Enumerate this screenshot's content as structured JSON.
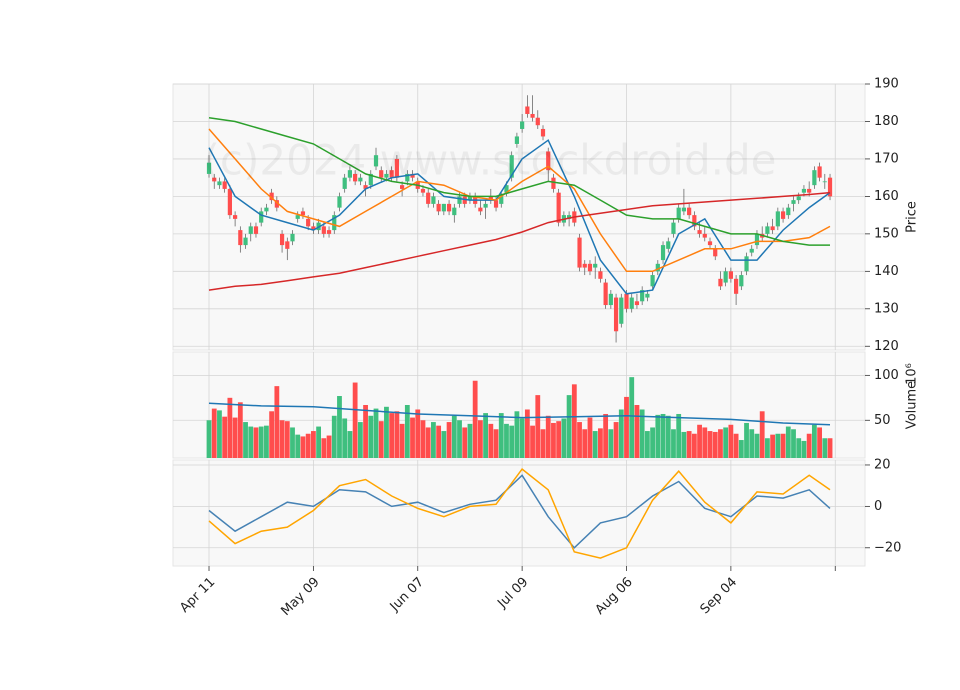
{
  "watermark": "(c)2024 www.stockdroid.de",
  "chart_data": [
    {
      "type": "candlestick",
      "ylabel": "Price",
      "xlim": [
        -6.9,
        125.7
      ],
      "ylim": [
        119,
        190
      ],
      "yticks": [
        120,
        130,
        140,
        150,
        160,
        170,
        180,
        190
      ],
      "grid": true,
      "up_color": "#3fbf7f",
      "down_color": "#ff4d4d",
      "ohlc": [
        [
          166,
          171,
          165,
          169
        ],
        [
          165,
          166,
          162,
          164
        ],
        [
          163,
          165,
          162,
          164
        ],
        [
          164,
          165,
          161,
          162
        ],
        [
          162,
          163,
          154,
          155
        ],
        [
          155,
          156,
          152,
          154
        ],
        [
          151,
          152,
          145,
          147
        ],
        [
          147,
          150,
          146,
          149
        ],
        [
          150,
          153,
          148,
          152
        ],
        [
          152,
          153,
          149,
          150
        ],
        [
          153,
          157,
          152,
          156
        ],
        [
          156,
          158,
          155,
          157
        ],
        [
          161,
          162,
          158,
          159
        ],
        [
          159,
          160,
          156,
          157
        ],
        [
          150,
          151,
          145,
          147
        ],
        [
          148,
          149,
          143,
          146
        ],
        [
          148,
          151,
          147,
          150
        ],
        [
          154,
          156,
          153,
          155
        ],
        [
          156,
          157,
          154,
          155
        ],
        [
          154,
          155,
          151,
          152
        ],
        [
          152,
          153,
          150,
          151
        ],
        [
          151,
          154,
          150,
          153
        ],
        [
          152,
          153,
          149,
          150
        ],
        [
          151,
          152,
          149,
          150
        ],
        [
          151,
          156,
          150,
          155
        ],
        [
          157,
          161,
          156,
          160
        ],
        [
          162,
          166,
          161,
          165
        ],
        [
          165,
          168,
          164,
          167
        ],
        [
          166,
          167,
          163,
          164
        ],
        [
          164,
          166,
          163,
          165
        ],
        [
          163,
          164,
          160,
          162
        ],
        [
          163,
          167,
          162,
          166
        ],
        [
          168,
          173,
          167,
          171
        ],
        [
          167,
          168,
          164,
          165
        ],
        [
          165,
          167,
          164,
          166
        ],
        [
          167,
          168,
          164,
          165
        ],
        [
          170,
          171,
          164,
          165
        ],
        [
          163,
          164,
          160,
          162
        ],
        [
          164,
          167,
          163,
          166
        ],
        [
          166,
          167,
          164,
          165
        ],
        [
          164,
          165,
          161,
          162
        ],
        [
          162,
          163,
          160,
          161
        ],
        [
          161,
          162,
          157,
          158
        ],
        [
          158,
          161,
          157,
          160
        ],
        [
          158,
          159,
          155,
          156
        ],
        [
          156,
          158,
          155,
          158
        ],
        [
          158,
          159,
          155,
          156
        ],
        [
          155,
          158,
          153,
          157
        ],
        [
          158,
          161,
          157,
          160
        ],
        [
          160,
          161,
          157,
          158
        ],
        [
          159,
          161,
          158,
          160
        ],
        [
          160,
          161,
          157,
          158
        ],
        [
          157,
          159,
          155,
          156
        ],
        [
          157,
          159,
          154,
          158
        ],
        [
          160,
          162,
          158,
          159
        ],
        [
          159,
          160,
          156,
          157
        ],
        [
          158,
          161,
          157,
          160
        ],
        [
          161,
          164,
          160,
          163
        ],
        [
          165,
          172,
          164,
          171
        ],
        [
          174,
          177,
          173,
          176
        ],
        [
          178,
          182,
          177,
          180
        ],
        [
          184,
          187,
          181,
          182
        ],
        [
          182,
          187,
          180,
          181
        ],
        [
          181,
          183,
          178,
          179
        ],
        [
          178,
          179,
          175,
          176
        ],
        [
          172,
          173,
          164,
          167
        ],
        [
          165,
          166,
          161,
          162
        ],
        [
          161,
          162,
          152,
          153
        ],
        [
          153,
          156,
          152,
          155
        ],
        [
          154,
          156,
          152,
          155
        ],
        [
          156,
          157,
          152,
          153
        ],
        [
          149,
          150,
          140,
          141
        ],
        [
          142,
          143,
          139,
          141
        ],
        [
          142,
          143,
          139,
          140
        ],
        [
          141,
          144,
          138,
          142
        ],
        [
          140,
          141,
          137,
          138
        ],
        [
          137,
          138,
          130,
          131
        ],
        [
          131,
          135,
          130,
          134
        ],
        [
          133,
          134,
          121,
          124
        ],
        [
          126,
          134,
          125,
          133
        ],
        [
          134,
          135,
          129,
          130
        ],
        [
          130,
          134,
          129,
          133
        ],
        [
          132,
          134,
          130,
          131
        ],
        [
          132,
          136,
          131,
          135
        ],
        [
          133,
          135,
          132,
          134
        ],
        [
          136,
          140,
          135,
          139
        ],
        [
          140,
          143,
          139,
          142
        ],
        [
          143,
          148,
          142,
          147
        ],
        [
          146,
          149,
          145,
          148
        ],
        [
          150,
          154,
          149,
          153
        ],
        [
          154,
          158,
          153,
          157
        ],
        [
          156,
          162,
          155,
          157
        ],
        [
          157,
          158,
          154,
          155
        ],
        [
          155,
          156,
          151,
          152
        ],
        [
          151,
          153,
          149,
          150
        ],
        [
          150,
          152,
          148,
          149
        ],
        [
          148,
          149,
          146,
          147
        ],
        [
          146,
          147,
          143,
          144
        ],
        [
          138,
          140,
          135,
          136
        ],
        [
          137,
          141,
          136,
          140
        ],
        [
          140,
          141,
          137,
          138
        ],
        [
          138,
          139,
          131,
          134
        ],
        [
          136,
          140,
          135,
          139
        ],
        [
          140,
          145,
          139,
          144
        ],
        [
          145,
          147,
          144,
          146
        ],
        [
          147,
          151,
          146,
          150
        ],
        [
          150,
          152,
          148,
          149
        ],
        [
          150,
          153,
          149,
          152
        ],
        [
          152,
          154,
          150,
          151
        ],
        [
          152,
          157,
          151,
          156
        ],
        [
          156,
          157,
          153,
          154
        ],
        [
          155,
          158,
          154,
          157
        ],
        [
          158,
          160,
          156,
          159
        ],
        [
          159,
          161,
          158,
          160
        ],
        [
          161,
          163,
          160,
          162
        ],
        [
          162,
          164,
          160,
          161
        ],
        [
          163,
          168,
          162,
          167
        ],
        [
          168,
          169,
          164,
          165
        ],
        [
          164,
          166,
          162,
          164
        ],
        [
          165,
          166,
          159,
          160
        ]
      ],
      "series": [
        {
          "color": "#1f77b4",
          "x": [
            0,
            5,
            10,
            15,
            20,
            25,
            30,
            35,
            40,
            45,
            50,
            55,
            60,
            65,
            70,
            75,
            80,
            85,
            90,
            95,
            100,
            105,
            110,
            115,
            119
          ],
          "values": [
            173,
            160,
            155,
            153,
            151,
            155,
            162,
            165,
            166,
            160,
            159,
            159,
            170,
            175,
            160,
            143,
            134,
            135,
            150,
            154,
            143,
            143,
            151,
            157,
            161
          ]
        },
        {
          "color": "#ff7f0e",
          "x": [
            0,
            5,
            10,
            15,
            20,
            25,
            30,
            35,
            40,
            45,
            50,
            55,
            60,
            65,
            70,
            75,
            80,
            85,
            90,
            95,
            100,
            105,
            110,
            115,
            119
          ],
          "values": [
            178,
            170,
            162,
            156,
            154,
            152,
            156,
            160,
            164,
            163,
            160,
            159,
            164,
            168,
            162,
            150,
            140,
            140,
            143,
            146,
            146,
            148,
            148,
            149,
            152
          ]
        },
        {
          "color": "#2ca02c",
          "x": [
            0,
            5,
            10,
            15,
            20,
            25,
            30,
            35,
            40,
            45,
            50,
            55,
            60,
            65,
            70,
            75,
            80,
            85,
            90,
            95,
            100,
            105,
            110,
            115,
            119
          ],
          "values": [
            181,
            180,
            178,
            176,
            174,
            170,
            166,
            164,
            163,
            161,
            160,
            160,
            162,
            164,
            163,
            159,
            155,
            154,
            154,
            152,
            150,
            150,
            148,
            147,
            147
          ]
        },
        {
          "color": "#d62728",
          "x": [
            0,
            5,
            10,
            15,
            20,
            25,
            30,
            35,
            40,
            45,
            50,
            55,
            60,
            65,
            70,
            75,
            80,
            85,
            90,
            95,
            100,
            105,
            110,
            115,
            119
          ],
          "values": [
            135,
            136,
            136.5,
            137.5,
            138.5,
            139.5,
            141,
            142.5,
            144,
            145.5,
            147,
            148.5,
            150.5,
            153,
            154.5,
            155.5,
            156.5,
            157.5,
            158,
            158.5,
            159,
            159.5,
            160,
            160.5,
            161
          ]
        }
      ]
    },
    {
      "type": "bar",
      "ylabel": "Volume",
      "offset_label": "10⁶",
      "xlim": [
        -6.9,
        125.7
      ],
      "ylim": [
        8,
        126
      ],
      "yticks": [
        50,
        100
      ],
      "grid": true,
      "values": [
        50,
        63,
        61,
        54,
        75,
        53,
        70,
        48,
        43,
        42,
        43,
        44,
        60,
        88,
        50,
        49,
        42,
        34,
        32,
        35,
        38,
        43,
        30,
        33,
        55,
        77,
        52,
        38,
        92,
        48,
        67,
        55,
        63,
        49,
        65,
        58,
        60,
        46,
        67,
        53,
        62,
        50,
        42,
        48,
        44,
        38,
        48,
        55,
        50,
        42,
        46,
        94,
        50,
        58,
        46,
        40,
        58,
        46,
        44,
        60,
        52,
        62,
        44,
        78,
        40,
        55,
        47,
        49,
        52,
        78,
        90,
        48,
        40,
        53,
        38,
        41,
        57,
        40,
        48,
        62,
        76,
        98,
        67,
        62,
        38,
        42,
        56,
        57,
        55,
        40,
        57,
        37,
        38,
        35,
        45,
        42,
        38,
        37,
        40,
        42,
        45,
        35,
        28,
        47,
        40,
        35,
        60,
        30,
        34,
        35,
        35,
        43,
        40,
        30,
        27,
        35,
        45,
        42,
        30,
        30
      ],
      "series": [
        {
          "color": "#1f77b4",
          "x": [
            0,
            10,
            20,
            30,
            40,
            50,
            60,
            70,
            80,
            90,
            100,
            110,
            119
          ],
          "values": [
            69,
            66,
            65,
            61,
            57,
            55,
            53,
            54,
            55,
            53,
            51,
            47,
            45
          ]
        }
      ]
    },
    {
      "type": "line",
      "xlim": [
        -6.9,
        125.7
      ],
      "ylim": [
        -28.8,
        22.4
      ],
      "yticks": [
        {
          "value": -20,
          "label": "−20"
        },
        0,
        20
      ],
      "grid": true,
      "xticks": [
        {
          "value": 0,
          "label": "Apr 11"
        },
        {
          "value": 20,
          "label": "May 09"
        },
        {
          "value": 40,
          "label": "Jun 07"
        },
        {
          "value": 60,
          "label": "Jul 09"
        },
        {
          "value": 80,
          "label": "Aug 06"
        },
        {
          "value": 100,
          "label": "Sep 04"
        },
        {
          "value": 120,
          "label": null
        }
      ],
      "series": [
        {
          "color": "#4682b4",
          "x": [
            0,
            5,
            10,
            15,
            20,
            25,
            30,
            35,
            40,
            45,
            50,
            55,
            60,
            65,
            70,
            75,
            80,
            85,
            90,
            95,
            100,
            105,
            110,
            115,
            119
          ],
          "values": [
            -2,
            -12,
            -5,
            2,
            0,
            8,
            7,
            0,
            2,
            -3,
            1,
            3,
            15,
            -5,
            -20,
            -8,
            -5,
            5,
            12,
            -1,
            -5,
            5,
            4,
            8,
            -1
          ]
        },
        {
          "color": "#ffa500",
          "x": [
            0,
            5,
            10,
            15,
            20,
            25,
            30,
            35,
            40,
            45,
            50,
            55,
            60,
            65,
            70,
            75,
            80,
            85,
            90,
            95,
            100,
            105,
            110,
            115,
            119
          ],
          "values": [
            -7,
            -18,
            -12,
            -10,
            -2,
            10,
            13,
            5,
            -1,
            -5,
            0,
            1,
            18,
            8,
            -22,
            -25,
            -20,
            3,
            17,
            2,
            -8,
            7,
            6,
            15,
            8
          ]
        }
      ]
    }
  ]
}
